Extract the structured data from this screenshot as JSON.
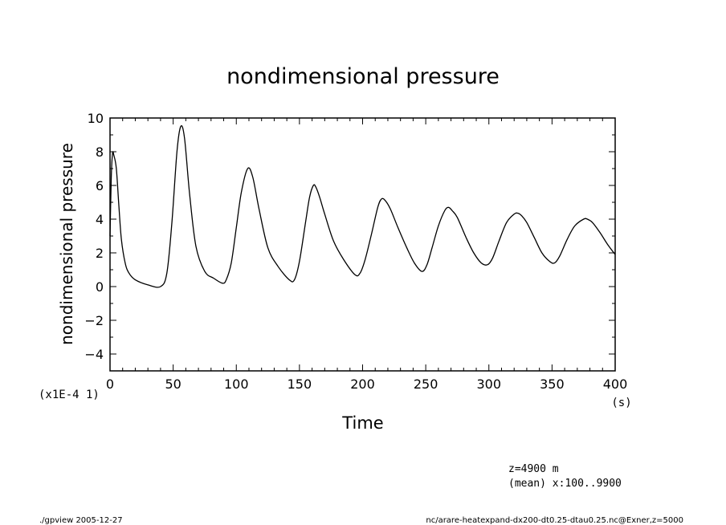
{
  "chart_data": {
    "type": "line",
    "title": "nondimensional pressure",
    "xlabel": "Time",
    "ylabel": "nondimensional pressure",
    "x_unit": "(s)",
    "y_scale_note": "(x1E-4 1)",
    "xlim": [
      0,
      400
    ],
    "ylim": [
      -5,
      10
    ],
    "x_ticks": [
      0,
      50,
      100,
      150,
      200,
      250,
      300,
      350,
      400
    ],
    "y_ticks": [
      -4,
      -2,
      0,
      2,
      4,
      6,
      8,
      10
    ],
    "y_tick_labels": [
      "−4",
      "−2",
      "0",
      "2",
      "4",
      "6",
      "8",
      "10"
    ],
    "grid": false,
    "legend": "none",
    "series": [
      {
        "x": [
          0,
          1,
          2,
          3,
          5,
          7,
          9,
          12,
          15,
          20,
          30,
          40,
          45,
          49,
          53,
          56,
          59,
          63,
          68,
          75,
          82,
          89,
          92,
          96,
          100,
          104,
          109,
          113,
          118,
          125,
          133,
          142,
          146,
          150,
          155,
          158,
          161,
          163,
          166,
          170,
          177,
          185,
          194,
          198,
          202,
          207,
          212,
          215,
          218,
          222,
          228,
          235,
          241,
          247,
          251,
          255,
          260,
          265,
          268,
          271,
          275,
          282,
          288,
          294,
          299,
          303,
          308,
          314,
          320,
          323,
          326,
          330,
          336,
          342,
          348,
          352,
          356,
          362,
          368,
          375,
          378,
          382,
          388,
          394,
          400
        ],
        "y": [
          3.0,
          6.5,
          7.9,
          7.8,
          7.0,
          4.8,
          2.8,
          1.4,
          0.8,
          0.4,
          0.1,
          0.0,
          0.8,
          3.8,
          8.0,
          9.5,
          8.8,
          5.5,
          2.4,
          0.9,
          0.5,
          0.2,
          0.4,
          1.4,
          3.5,
          5.6,
          7.0,
          6.5,
          4.6,
          2.3,
          1.2,
          0.4,
          0.4,
          1.5,
          3.9,
          5.3,
          6.0,
          5.9,
          5.3,
          4.3,
          2.7,
          1.6,
          0.7,
          0.8,
          1.6,
          3.1,
          4.7,
          5.2,
          5.1,
          4.6,
          3.5,
          2.3,
          1.4,
          0.9,
          1.3,
          2.3,
          3.6,
          4.5,
          4.7,
          4.5,
          4.1,
          2.9,
          2.0,
          1.4,
          1.3,
          1.7,
          2.7,
          3.8,
          4.3,
          4.35,
          4.2,
          3.8,
          2.9,
          2.0,
          1.5,
          1.4,
          1.8,
          2.8,
          3.6,
          4.0,
          4.0,
          3.8,
          3.2,
          2.5,
          1.9
        ]
      }
    ]
  },
  "annotations": {
    "z_info": "z=4900  m",
    "mean_info": "(mean) x:100..9900",
    "footer_left": "./gpview  2005-12-27",
    "footer_right": "nc/arare-heatexpand-dx200-dt0.25-dtau0.25.nc@Exner,z=5000"
  }
}
